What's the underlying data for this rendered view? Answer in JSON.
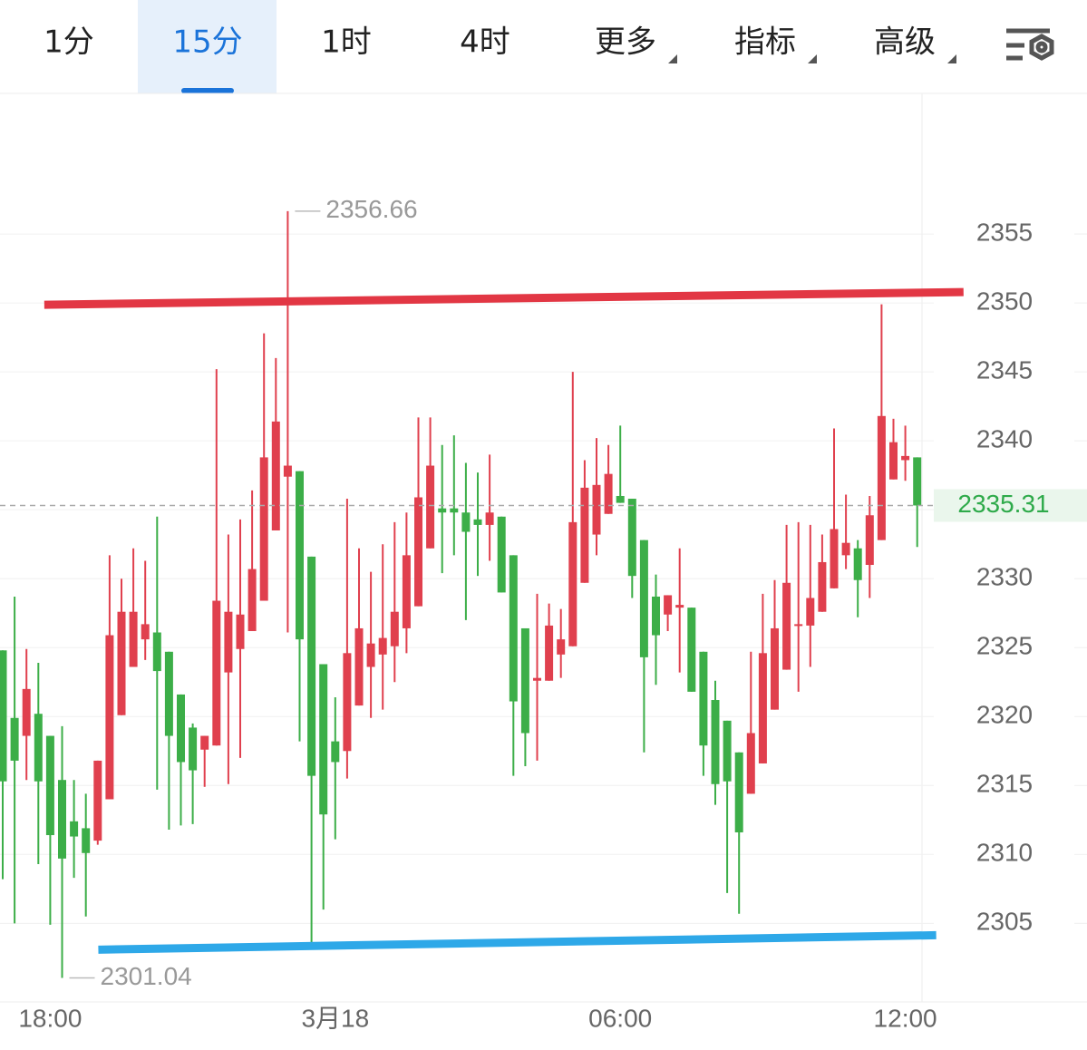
{
  "tabs": [
    "1分",
    "15分",
    "1时",
    "4时",
    "更多",
    "指标",
    "高级"
  ],
  "chart_data": {
    "type": "candlestick",
    "up_color": "#e0404e",
    "down_color": "#3cae48",
    "categories": [
      null,
      null,
      null,
      null,
      "18:00",
      null,
      null,
      null,
      null,
      null,
      null,
      null,
      null,
      null,
      null,
      null,
      null,
      null,
      null,
      null,
      null,
      null,
      null,
      null,
      null,
      null,
      null,
      null,
      "3月18",
      null,
      null,
      null,
      null,
      null,
      null,
      null,
      null,
      null,
      null,
      null,
      null,
      null,
      null,
      null,
      null,
      null,
      null,
      null,
      null,
      null,
      null,
      null,
      "06:00",
      null,
      null,
      null,
      null,
      null,
      null,
      null,
      null,
      null,
      null,
      null,
      null,
      null,
      null,
      null,
      null,
      null,
      null,
      null,
      null,
      null,
      null,
      null,
      "12:00",
      null
    ],
    "open": [
      2324.8,
      2319.9,
      2318.6,
      2320.2,
      2318.6,
      2315.4,
      2312.4,
      2311.9,
      2311.0,
      2314.0,
      2320.1,
      2323.6,
      2325.6,
      2326.1,
      2324.7,
      2321.6,
      2319.2,
      2317.6,
      2317.9,
      2323.2,
      2324.9,
      2326.2,
      2328.4,
      2333.5,
      2337.4,
      2337.8,
      2331.6,
      2323.8,
      2318.2,
      2317.5,
      2320.8,
      2323.6,
      2324.5,
      2325.1,
      2326.4,
      2328.0,
      2332.2,
      2335.1,
      2335.1,
      2334.8,
      2334.3,
      2333.9,
      2334.5,
      2331.7,
      2326.4,
      2322.6,
      2322.6,
      2324.5,
      2325.1,
      2329.7,
      2333.2,
      2334.7,
      2336.0,
      2335.8,
      2332.8,
      2328.7,
      2327.4,
      2327.9,
      2327.9,
      2324.7,
      2321.2,
      2319.7,
      2317.4,
      2314.4,
      2316.6,
      2320.5,
      2323.4,
      2326.6,
      2326.6,
      2327.6,
      2329.3,
      2331.7,
      2332.2,
      2331.0,
      2332.8,
      2337.2,
      2338.6,
      2338.8
    ],
    "high": [
      2324.8,
      2328.7,
      2324.9,
      2323.9,
      2318.6,
      2319.3,
      2315.4,
      2314.4,
      2316.8,
      2331.7,
      2330.0,
      2332.2,
      2331.3,
      2334.5,
      2324.7,
      2321.6,
      2319.5,
      2318.6,
      2345.2,
      2333.2,
      2334.3,
      2336.4,
      2347.8,
      2346.0,
      2356.66,
      2337.8,
      2331.6,
      2323.8,
      2321.4,
      2335.8,
      2332.2,
      2330.5,
      2332.5,
      2334.1,
      2334.8,
      2341.7,
      2341.7,
      2339.7,
      2340.4,
      2338.4,
      2337.7,
      2339.0,
      2334.5,
      2331.7,
      2326.4,
      2328.9,
      2328.2,
      2327.8,
      2345.0,
      2338.6,
      2340.2,
      2339.7,
      2341.1,
      2335.8,
      2332.8,
      2330.3,
      2328.8,
      2332.2,
      2327.9,
      2324.7,
      2322.6,
      2319.7,
      2317.4,
      2324.7,
      2328.9,
      2329.9,
      2333.9,
      2334.1,
      2333.9,
      2333.2,
      2340.9,
      2336.1,
      2332.8,
      2336.0,
      2349.9,
      2341.6,
      2341.1,
      2338.8
    ],
    "low": [
      2308.2,
      2305.0,
      2315.4,
      2309.3,
      2304.9,
      2301.04,
      2308.3,
      2305.5,
      2310.7,
      2314.0,
      2320.1,
      2323.6,
      2324.1,
      2314.7,
      2311.8,
      2312.1,
      2312.2,
      2314.9,
      2317.9,
      2315.1,
      2317.0,
      2326.2,
      2328.4,
      2333.5,
      2326.1,
      2318.2,
      2303.6,
      2306.0,
      2311.1,
      2315.5,
      2320.8,
      2319.9,
      2320.5,
      2322.5,
      2324.6,
      2328.0,
      2332.2,
      2330.4,
      2331.7,
      2327.0,
      2330.2,
      2331.3,
      2329.0,
      2315.7,
      2316.4,
      2316.8,
      2322.6,
      2322.8,
      2325.1,
      2329.7,
      2331.7,
      2334.7,
      2335.5,
      2328.6,
      2317.4,
      2322.3,
      2326.2,
      2323.2,
      2321.8,
      2315.7,
      2313.6,
      2307.2,
      2305.7,
      2314.4,
      2316.6,
      2320.5,
      2323.4,
      2321.8,
      2323.6,
      2327.6,
      2329.3,
      2330.7,
      2327.2,
      2328.6,
      2332.8,
      2337.2,
      2337.1,
      2332.3
    ],
    "close": [
      2315.3,
      2316.8,
      2322.0,
      2315.3,
      2311.4,
      2309.7,
      2311.3,
      2310.1,
      2316.8,
      2325.9,
      2327.6,
      2327.6,
      2326.7,
      2323.3,
      2318.6,
      2316.7,
      2316.1,
      2318.6,
      2328.4,
      2327.6,
      2327.4,
      2330.7,
      2338.8,
      2341.4,
      2338.2,
      2325.6,
      2315.7,
      2312.9,
      2316.7,
      2324.6,
      2326.4,
      2325.3,
      2325.7,
      2327.6,
      2331.7,
      2335.9,
      2338.2,
      2334.8,
      2334.8,
      2333.4,
      2333.9,
      2334.8,
      2329.0,
      2321.1,
      2318.8,
      2322.8,
      2326.6,
      2325.6,
      2334.1,
      2336.6,
      2336.8,
      2337.6,
      2335.5,
      2330.2,
      2324.3,
      2325.9,
      2328.8,
      2328.1,
      2321.8,
      2317.9,
      2315.1,
      2315.3,
      2311.6,
      2318.8,
      2324.6,
      2326.4,
      2329.7,
      2326.7,
      2328.6,
      2331.2,
      2333.6,
      2332.6,
      2329.9,
      2334.6,
      2341.8,
      2339.9,
      2338.9,
      2335.31
    ],
    "ylim": [
      2299.3,
      2365.2
    ],
    "yticks": [
      2305,
      2310,
      2315,
      2320,
      2325,
      2330,
      2335,
      2340,
      2345,
      2350,
      2355
    ],
    "grid": true,
    "max_label": {
      "index": 24,
      "value": 2356.66
    },
    "min_label": {
      "index": 5,
      "value": 2301.04
    },
    "last_price": 2335.31,
    "trendlines": [
      {
        "color": "#e23744",
        "x": [
          3.5,
          80.9
        ],
        "y": [
          2349.87,
          2350.79
        ]
      },
      {
        "color": "#2ea8e8",
        "x": [
          8.05,
          78.6
        ],
        "y": [
          2303.09,
          2304.14
        ]
      }
    ]
  }
}
